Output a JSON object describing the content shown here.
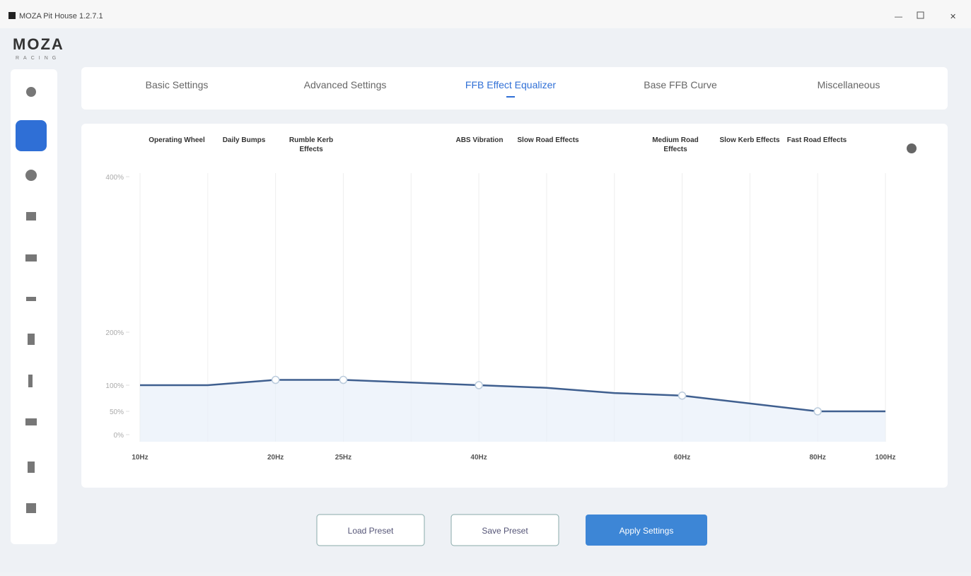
{
  "window": {
    "title": "MOZA Pit House 1.2.7.1",
    "logo": "MOZA",
    "logo_sub": "RACING"
  },
  "tabs": [
    "Basic Settings",
    "Advanced Settings",
    "FFB Effect Equalizer",
    "Base FFB Curve",
    "Miscellaneous"
  ],
  "buttons": [
    "Load Preset",
    "Save Preset",
    "Apply Settings"
  ],
  "chart_data": {
    "type": "line",
    "annotations": [
      "Operating Wheel",
      "Daily Bumps",
      "Rumble Kerb Effects",
      "ABS Vibration",
      "Slow Road Effects",
      "Medium Road Effects",
      "Slow Kerb Effects",
      "Fast Road Effects"
    ],
    "categories": [
      "10Hz",
      null,
      "20Hz",
      "25Hz",
      null,
      "40Hz",
      null,
      null,
      "60Hz",
      null,
      "80Hz",
      "100Hz"
    ],
    "series": [
      {
        "color": "#3f5f8f",
        "values": [
          100,
          100,
          110,
          110,
          105,
          100,
          95,
          85,
          80,
          65,
          50,
          50
        ]
      }
    ],
    "ylim": [
      0,
      400
    ],
    "yticks": [
      {
        "value": 0,
        "label": "0%"
      },
      {
        "value": 50,
        "label": "50%"
      },
      {
        "value": 100,
        "label": "100%"
      },
      {
        "value": 200,
        "label": "200%"
      },
      {
        "value": 400,
        "label": "400%"
      }
    ],
    "grid": true
  }
}
